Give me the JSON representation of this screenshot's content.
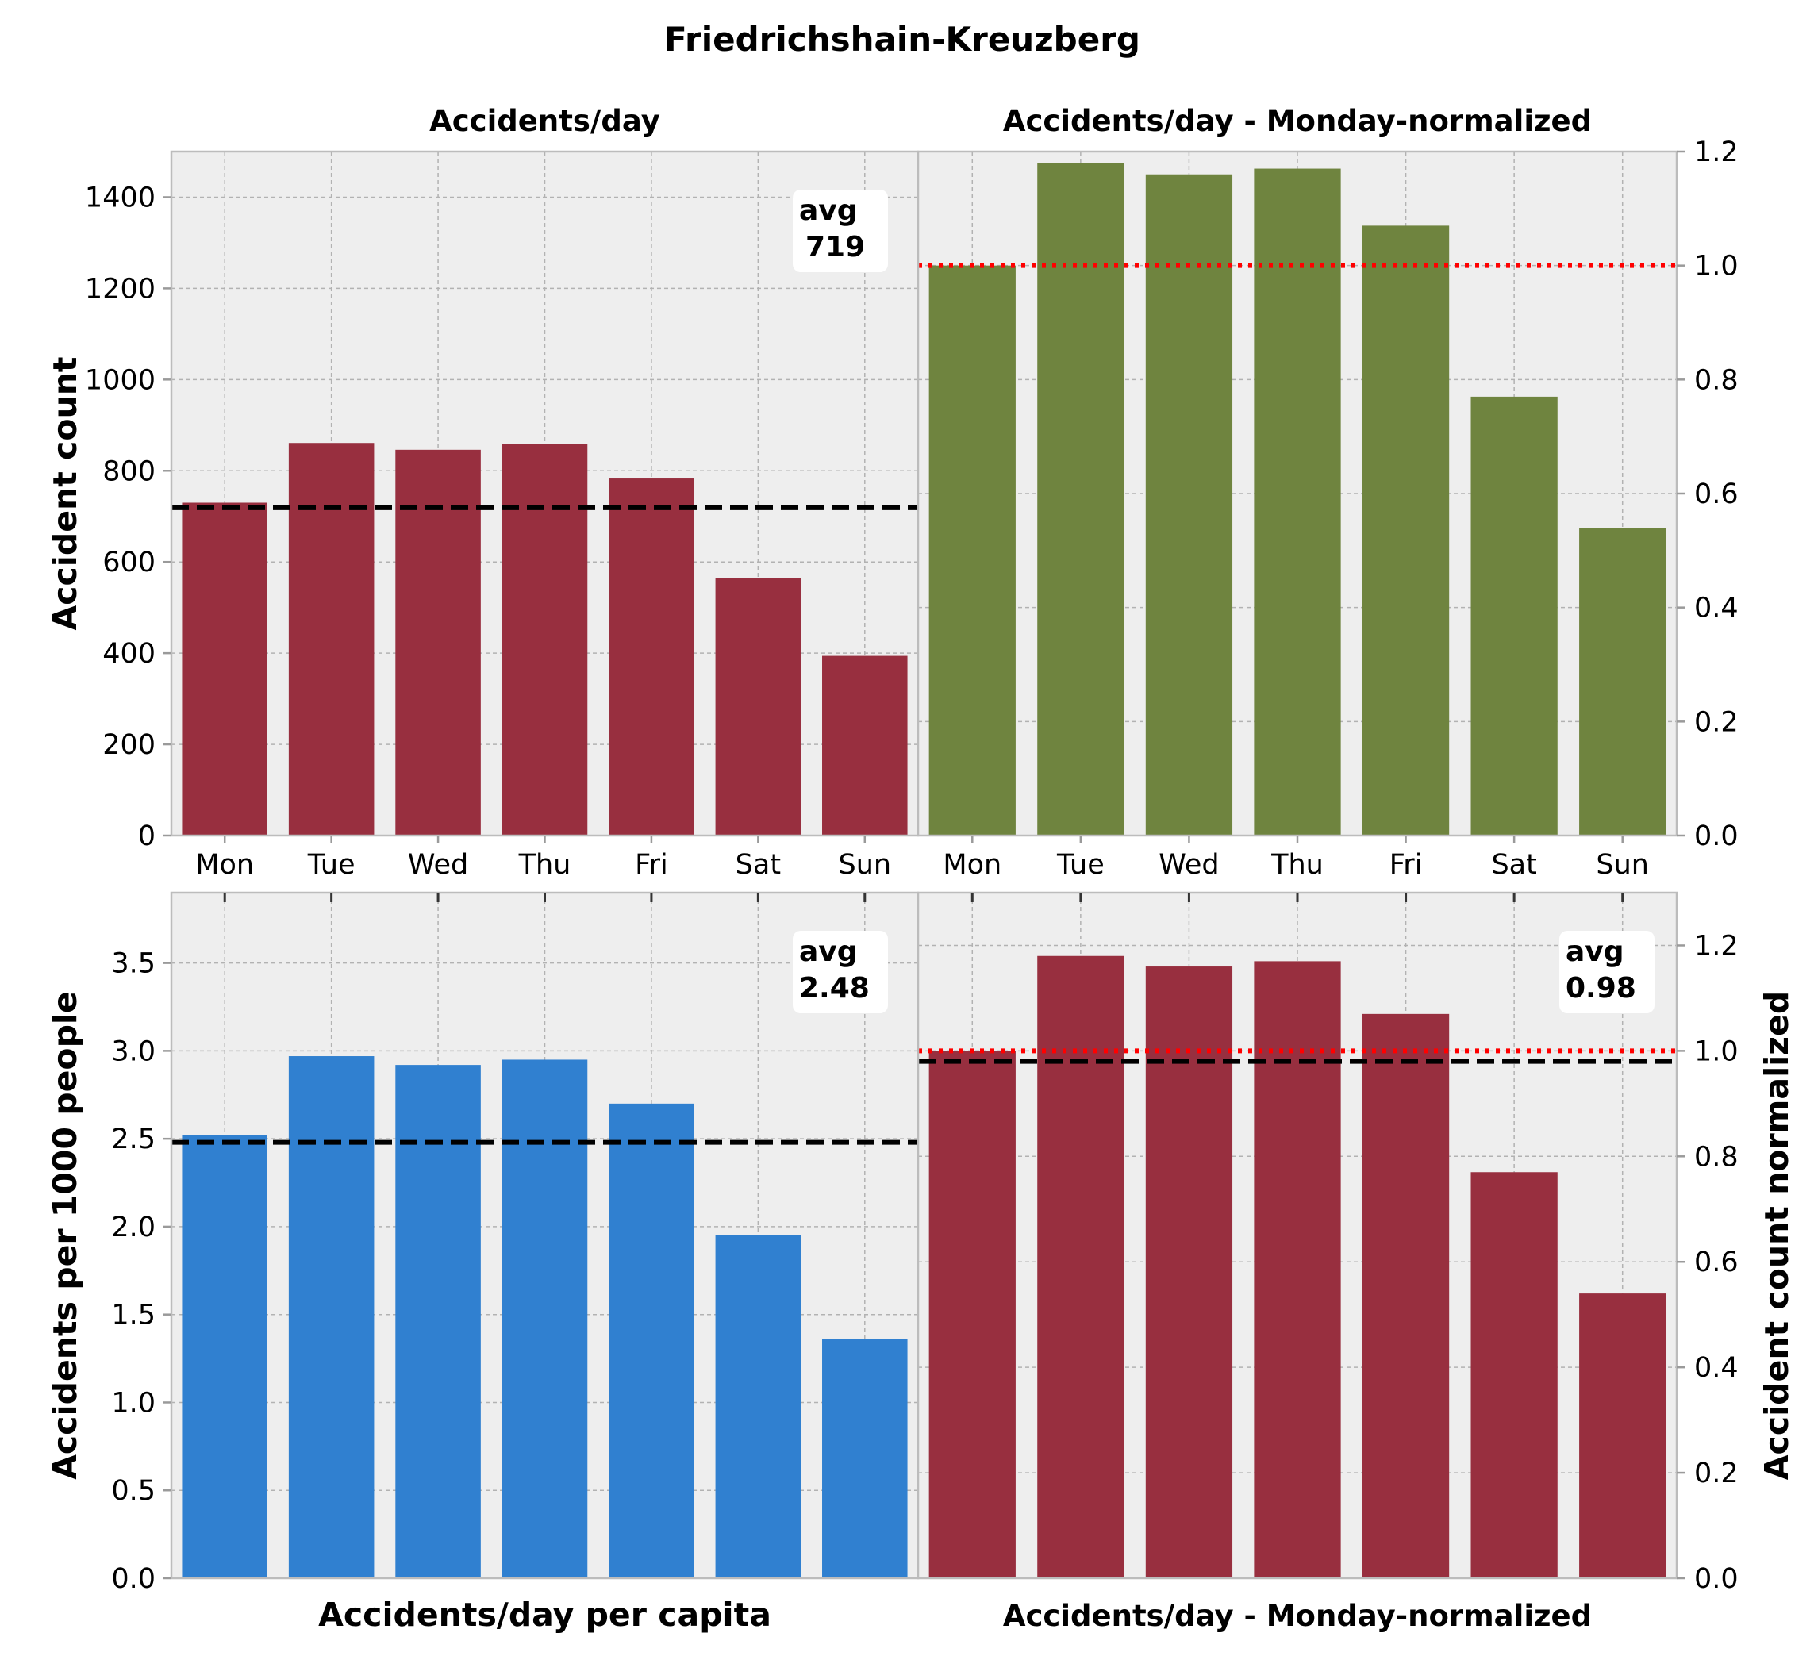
{
  "figure_title": "Friedrichshain-Kreuzberg",
  "chart_data": [
    {
      "id": "tl",
      "type": "bar",
      "title": "Accidents/day",
      "xlabel": "",
      "ylabel": "Accident count",
      "categories": [
        "Mon",
        "Tue",
        "Wed",
        "Thu",
        "Fri",
        "Sat",
        "Sun"
      ],
      "values": [
        730,
        861,
        846,
        858,
        783,
        565,
        394
      ],
      "bar_color": "#982f3f",
      "ylim": [
        0,
        1500
      ],
      "yticks": [
        0,
        200,
        400,
        600,
        800,
        1000,
        1200,
        1400
      ],
      "ytick_labels": [
        "0",
        "200",
        "400",
        "600",
        "800",
        "1000",
        "1200",
        "1400"
      ],
      "yaxis_side": "left",
      "show_xtick_labels": true,
      "avg_line": {
        "value": 719,
        "style": "dashed",
        "color": "#000000"
      },
      "avg_box": {
        "label": "avg",
        "value": "719"
      },
      "grid": true
    },
    {
      "id": "tr",
      "type": "bar",
      "title": "Accidents/day - Monday-normalized",
      "xlabel": "",
      "ylabel": "",
      "categories": [
        "Mon",
        "Tue",
        "Wed",
        "Thu",
        "Fri",
        "Sat",
        "Sun"
      ],
      "values": [
        1.0,
        1.18,
        1.16,
        1.17,
        1.07,
        0.77,
        0.54
      ],
      "bar_color": "#6f843f",
      "ylim": [
        0,
        1.2
      ],
      "yticks": [
        0,
        0.2,
        0.4,
        0.6,
        0.8,
        1.0,
        1.2
      ],
      "ytick_labels": [
        "0.0",
        "0.2",
        "0.4",
        "0.6",
        "0.8",
        "1.0",
        "1.2"
      ],
      "yaxis_side": "right",
      "show_xtick_labels": true,
      "ref_line": {
        "value": 1.0,
        "style": "dotted",
        "color": "#ff0000"
      },
      "grid": true
    },
    {
      "id": "bl",
      "type": "bar",
      "title": "",
      "xlabel": "Accidents/day per capita",
      "ylabel": "Accidents per 1000 people",
      "categories": [
        "Mon",
        "Tue",
        "Wed",
        "Thu",
        "Fri",
        "Sat",
        "Sun"
      ],
      "values": [
        2.52,
        2.97,
        2.92,
        2.95,
        2.7,
        1.95,
        1.36
      ],
      "bar_color": "#3080d0",
      "ylim": [
        0,
        3.9
      ],
      "yticks": [
        0,
        0.5,
        1.0,
        1.5,
        2.0,
        2.5,
        3.0,
        3.5
      ],
      "ytick_labels": [
        "0.0",
        "0.5",
        "1.0",
        "1.5",
        "2.0",
        "2.5",
        "3.0",
        "3.5"
      ],
      "yaxis_side": "left",
      "show_xtick_labels": false,
      "avg_line": {
        "value": 2.48,
        "style": "dashed",
        "color": "#000000"
      },
      "avg_box": {
        "label": "avg",
        "value": "2.48"
      },
      "grid": true
    },
    {
      "id": "br",
      "type": "bar",
      "title": "",
      "xlabel": "Accidents/day - Monday-normalized",
      "ylabel": "Accident count normalized",
      "categories": [
        "Mon",
        "Tue",
        "Wed",
        "Thu",
        "Fri",
        "Sat",
        "Sun"
      ],
      "values": [
        1.0,
        1.18,
        1.16,
        1.17,
        1.07,
        0.77,
        0.54
      ],
      "bar_color": "#982f3f",
      "ylim": [
        0,
        1.3
      ],
      "yticks": [
        0,
        0.2,
        0.4,
        0.6,
        0.8,
        1.0,
        1.2
      ],
      "ytick_labels": [
        "0.0",
        "0.2",
        "0.4",
        "0.6",
        "0.8",
        "1.0",
        "1.2"
      ],
      "yaxis_side": "right",
      "show_xtick_labels": false,
      "ref_line": {
        "value": 1.0,
        "style": "dotted",
        "color": "#ff0000"
      },
      "avg_line": {
        "value": 0.98,
        "style": "dashed",
        "color": "#000000"
      },
      "avg_box": {
        "label": "avg",
        "value": "0.98"
      },
      "grid": true
    }
  ]
}
